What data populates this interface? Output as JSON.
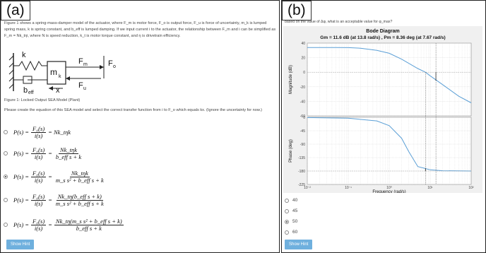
{
  "panel_a": {
    "label": "(a)",
    "intro": "Figure 1 shows a spring-mass-damper model of the actuator, where F_m is motor force, F_o is output force, F_u is force of uncertainty, m_k is lumped spring mass, k is spring constant, and b_eff is lumped damping. If we input current i to the actuator, the relationship between F_m and i can be simplified as F_m = Nk_tηi, where N is speed reduction, k_t is motor torque constant, and η is drivetrain efficiency.",
    "figure_labels": {
      "k": "k",
      "mk": "m",
      "mk_sub": "k",
      "fm": "F",
      "fm_sub": "m",
      "fo": "F",
      "fo_sub": "o",
      "fu": "F",
      "fu_sub": "u",
      "beff": "b",
      "beff_sub": "eff",
      "x": "x"
    },
    "caption": "Figure 1: Locked Output SEA Model (Plant)",
    "question": "Please create the equation of this SEA model and select the correct transfer function from i to F_o which equals kx. (Ignore the uncertainty for now.)",
    "options": [
      {
        "lhs": "P(s) =",
        "fn": "F₀(s)",
        "fd": "i(s)",
        "rhs": "= Nk_tηk",
        "rn": "",
        "rd": "",
        "selected": false
      },
      {
        "lhs": "P(s) =",
        "fn": "F₀(s)",
        "fd": "i(s)",
        "rhs": "=",
        "rn": "Nk_tηk",
        "rd": "b_eff s + k",
        "selected": false
      },
      {
        "lhs": "P(s) =",
        "fn": "F₀(s)",
        "fd": "i(s)",
        "rhs": "=",
        "rn": "Nk_tηk",
        "rd": "m_s s² + b_eff s + k",
        "selected": true
      },
      {
        "lhs": "P(s) =",
        "fn": "F₀(s)",
        "fd": "i(s)",
        "rhs": "=",
        "rn": "Nk_tη(b_eff s + k)",
        "rd": "m_s s² + b_eff s + k",
        "selected": false
      },
      {
        "lhs": "P(s) =",
        "fn": "F₀(s)",
        "fd": "i(s)",
        "rhs": "=",
        "rn": "Nk_tη(m_s s² + b_eff s + k)",
        "rd": "b_eff s + k",
        "selected": false
      }
    ],
    "hint_label": "Show Hint"
  },
  "panel_b": {
    "label": "(b)",
    "question_top": "based on the value of Δφ, what is an acceptable value for φ_max?",
    "chart_data": {
      "type": "line",
      "title": "Bode Diagram",
      "subtitle": "Gm = 11.6 dB (at 13.8 rad/s) ,  Pm = 8.36 deg (at 7.67 rad/s)",
      "xlabel": "Frequency  (rad/s)",
      "xscale": "log",
      "xlim": [
        0.01,
        100
      ],
      "x_ticks": [
        "10⁻²",
        "10⁻¹",
        "10⁰",
        "10¹",
        "10²"
      ],
      "magnitude": {
        "ylabel": "Magnitude (dB)",
        "ylim": [
          -60,
          40
        ],
        "y_ticks": [
          "40",
          "20",
          "0",
          "-20",
          "-40",
          "-60"
        ],
        "x": [
          0.01,
          0.05,
          0.1,
          0.2,
          0.5,
          1,
          2,
          5,
          7.67,
          10,
          20,
          50,
          100
        ],
        "y": [
          34,
          34,
          33.8,
          33,
          30,
          26,
          18,
          5,
          0,
          -5,
          -17,
          -33,
          -42
        ]
      },
      "phase": {
        "ylabel": "Phase (deg)",
        "ylim": [
          -225,
          0
        ],
        "y_ticks": [
          "0",
          "-45",
          "-90",
          "-135",
          "-180",
          "-225"
        ],
        "x": [
          0.01,
          0.1,
          0.5,
          1,
          2,
          3,
          5,
          7.67,
          10,
          20,
          100
        ],
        "y": [
          -1,
          -3,
          -12,
          -28,
          -70,
          -115,
          -165,
          -171.6,
          -176,
          -179,
          -180
        ]
      },
      "grid": true
    },
    "answers": [
      {
        "label": "40",
        "selected": false
      },
      {
        "label": "45",
        "selected": false
      },
      {
        "label": "50",
        "selected": true
      },
      {
        "label": "60",
        "selected": false
      }
    ],
    "hint_label": "Show Hint"
  },
  "colors": {
    "curve": "#5b9fd6",
    "hint": "#6fb0de",
    "grid": "#cccccc"
  }
}
